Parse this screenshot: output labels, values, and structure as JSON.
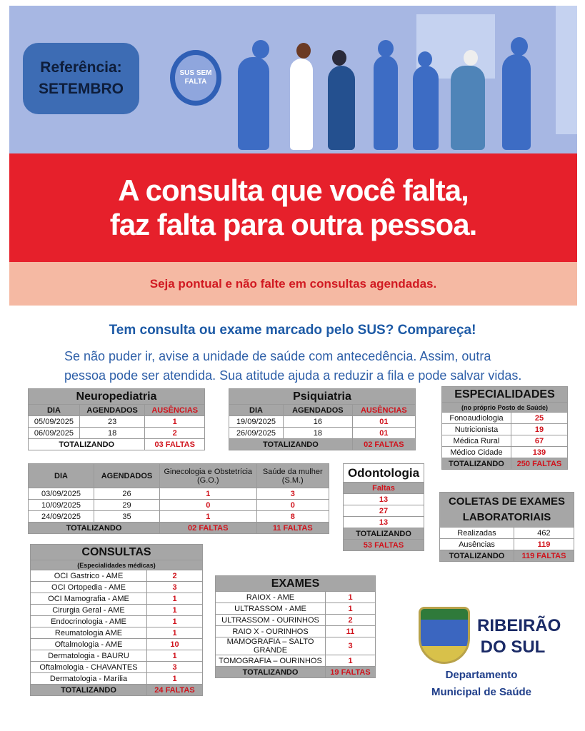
{
  "banner": {
    "ref_label": "Referência:",
    "ref_month": "SETEMBRO",
    "clock_text1": "SUS SEM",
    "clock_text2": "FALTA"
  },
  "headline": {
    "line1": "A consulta que você falta,",
    "line2": "faz falta para outra pessoa."
  },
  "tagline": "Seja pontual e não falte em consultas agendadas.",
  "heading": "Tem consulta ou exame marcado pelo SUS? Compareça!",
  "paragraph": "Se não puder ir, avise a unidade de saúde com antecedência. Assim, outra pessoa pode ser atendida. Sua atitude ajuda a reduzir a fila e pode salvar vidas.",
  "neuro": {
    "title": "Neuropediatria",
    "cols": [
      "DIA",
      "AGENDADOS",
      "AUSÊNCIAS"
    ],
    "rows": [
      [
        "05/09/2025",
        "23",
        "1"
      ],
      [
        "06/09/2025",
        "18",
        "2"
      ]
    ],
    "total_label": "TOTALIZANDO",
    "total": "03 FALTAS"
  },
  "psiq": {
    "title": "Psiquiatria",
    "cols": [
      "DIA",
      "AGENDADOS",
      "AUSÊNCIAS"
    ],
    "rows": [
      [
        "19/09/2025",
        "16",
        "01"
      ],
      [
        "26/09/2025",
        "18",
        "01"
      ]
    ],
    "total_label": "TOTALIZANDO",
    "total": "02 FALTAS"
  },
  "gineco": {
    "cols": [
      "DIA",
      "AGENDADOS",
      "Ginecologia e Obstetrícia (G.O.)",
      "Saúde da mulher (S.M.)"
    ],
    "rows": [
      [
        "03/09/2025",
        "26",
        "1",
        "3"
      ],
      [
        "10/09/2025",
        "29",
        "0",
        "0"
      ],
      [
        "24/09/2025",
        "35",
        "1",
        "8"
      ]
    ],
    "total_label": "TOTALIZANDO",
    "total_go": "02 FALTAS",
    "total_sm": "11 FALTAS"
  },
  "odonto": {
    "title": "Odontologia",
    "col": "Faltas",
    "rows": [
      "13",
      "27",
      "13"
    ],
    "total_label": "TOTALIZANDO",
    "total": "53 FALTAS"
  },
  "espec": {
    "title": "ESPECIALIDADES",
    "subtitle": "(no próprio Posto de Saúde)",
    "rows": [
      [
        "Fonoaudiologia",
        "25"
      ],
      [
        "Nutricionista",
        "19"
      ],
      [
        "Médica Rural",
        "67"
      ],
      [
        "Médico Cidade",
        "139"
      ]
    ],
    "total_label": "TOTALIZANDO",
    "total": "250 FALTAS"
  },
  "coletas": {
    "title1": "COLETAS DE EXAMES",
    "title2": "LABORATORIAIS",
    "rows": [
      [
        "Realizadas",
        "462"
      ],
      [
        "Ausências",
        "119"
      ]
    ],
    "total_label": "TOTALIZANDO",
    "total": "119 FALTAS"
  },
  "consultas": {
    "title": "CONSULTAS",
    "subtitle": "(Especialidades médicas)",
    "rows": [
      [
        "OCI Gastrico - AME",
        "2"
      ],
      [
        "OCI Ortopedia - AME",
        "3"
      ],
      [
        "OCI Mamografia - AME",
        "1"
      ],
      [
        "Cirurgia Geral - AME",
        "1"
      ],
      [
        "Endocrinologia - AME",
        "1"
      ],
      [
        "Reumatologia AME",
        "1"
      ],
      [
        "Oftalmologia - AME",
        "10"
      ],
      [
        "Dermatologia - BAURU",
        "1"
      ],
      [
        "Oftalmologia - CHAVANTES",
        "3"
      ],
      [
        "Dermatologia - Marília",
        "1"
      ]
    ],
    "total_label": "TOTALIZANDO",
    "total": "24 FALTAS"
  },
  "exames": {
    "title": "EXAMES",
    "rows": [
      [
        "RAIOX - AME",
        "1"
      ],
      [
        "ULTRASSOM - AME",
        "1"
      ],
      [
        "ULTRASSOM - OURINHOS",
        "2"
      ],
      [
        "RAIO X - OURINHOS",
        "11"
      ],
      [
        "MAMOGRAFIA – SALTO GRANDE",
        "3"
      ],
      [
        "TOMOGRAFIA – OURINHOS",
        "1"
      ]
    ],
    "total_label": "TOTALIZANDO",
    "total": "19 FALTAS"
  },
  "footer": {
    "brand1": "RIBEIRÃO",
    "brand2": "DO SUL",
    "dept1": "Departamento",
    "dept2": "Municipal de Saúde",
    "seal_text": "RIBEIRÃO DO SUL"
  }
}
